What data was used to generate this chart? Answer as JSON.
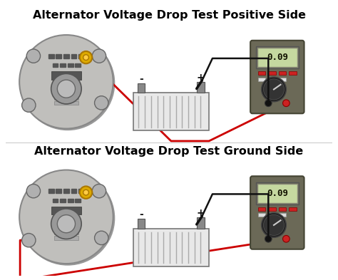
{
  "title1": "Alternator Voltage Drop Test Positive Side",
  "title2": "Alternator Voltage Drop Test Ground Side",
  "bg_color": "#ffffff",
  "title_color": "#000000",
  "title_fontsize": 11.5,
  "display_value": "0.09",
  "wire_red": "#cc0000",
  "wire_black": "#111111",
  "meter_color": "#6b6b52",
  "meter_display_bg": "#c8d8b0",
  "alt_body": "#c8c8c8",
  "alt_dark": "#444444",
  "battery_body": "#dddddd"
}
